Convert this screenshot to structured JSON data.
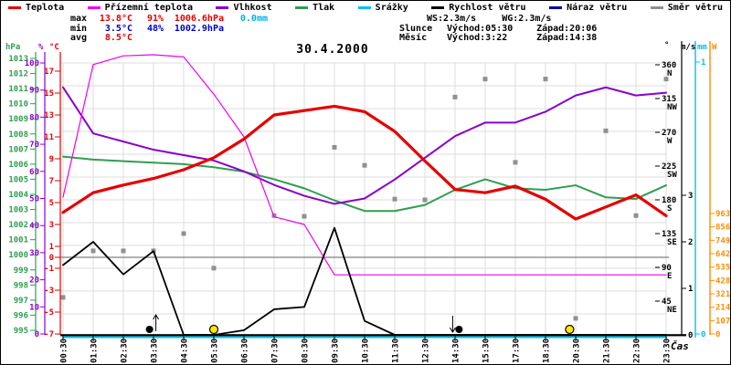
{
  "title": "30.4.2000",
  "legend": {
    "items": [
      {
        "label": "Teplota",
        "color": "#e60000"
      },
      {
        "label": "Přízemní teplota",
        "color": "#f000f0"
      },
      {
        "label": "Vlhkost",
        "color": "#8800cc"
      },
      {
        "label": "Tlak",
        "color": "#2f9e4f"
      },
      {
        "label": "Srážky",
        "color": "#00c0f0"
      },
      {
        "label": "Rychlost větru",
        "color": "#000000"
      },
      {
        "label": "Náraz větru",
        "color": "#0000a0"
      },
      {
        "label": "Směr větru",
        "color": "#909090"
      }
    ]
  },
  "stats_left": {
    "rows": [
      {
        "label": "max",
        "values": [
          {
            "text": "13.8°C",
            "color": "#e60000",
            "col": "c1"
          },
          {
            "text": "91%",
            "color": "#e60000",
            "col": "c2"
          },
          {
            "text": "1006.6hPa",
            "color": "#e60000",
            "col": "c3"
          },
          {
            "text": "0.0mm",
            "color": "#00b0e8",
            "col": "c4"
          }
        ]
      },
      {
        "label": "min",
        "values": [
          {
            "text": "3.5°C",
            "color": "#0000cc",
            "col": "c1"
          },
          {
            "text": "48%",
            "color": "#0000cc",
            "col": "c2"
          },
          {
            "text": "1002.9hPa",
            "color": "#0000cc",
            "col": "c3"
          }
        ]
      },
      {
        "label": "avg",
        "values": [
          {
            "text": "8.5°C",
            "color": "#e60000",
            "col": "c1"
          }
        ]
      }
    ]
  },
  "stats_right": {
    "ws": "WS:2.3m/s",
    "wg": "WG:2.3m/s",
    "sun_label": "Slunce",
    "sun_rise": "Východ:05:30",
    "sun_set": "Západ:20:06",
    "moon_label": "Měsíc",
    "moon_rise": "Východ:3:22",
    "moon_set": "Západ:14:38"
  },
  "chart_data": {
    "type": "line",
    "title": "30.4.2000",
    "xlabel": "Čas",
    "x_labels": [
      "00:30",
      "01:30",
      "02:30",
      "03:30",
      "04:30",
      "05:30",
      "06:30",
      "07:30",
      "08:30",
      "09:30",
      "10:30",
      "11:30",
      "12:30",
      "14:30",
      "15:30",
      "17:30",
      "18:30",
      "20:30",
      "21:30",
      "22:30",
      "23:30"
    ],
    "axes": {
      "hpa": {
        "label": "hPa",
        "color": "#2f9e4f",
        "min": 995,
        "max": 1013,
        "ticks": [
          995,
          996,
          997,
          998,
          999,
          1000,
          1001,
          1002,
          1003,
          1004,
          1005,
          1006,
          1007,
          1008,
          1009,
          1010,
          1011,
          1012,
          1013
        ]
      },
      "pct": {
        "label": "%",
        "color": "#8800cc",
        "min": 0,
        "max": 100,
        "ticks": [
          0,
          10,
          20,
          30,
          40,
          50,
          60,
          70,
          80,
          90,
          100
        ]
      },
      "degc": {
        "label": "°C",
        "color": "#e60000",
        "min": -7,
        "max": 17,
        "ticks": [
          -7,
          -5,
          -3,
          -1,
          0,
          1,
          3,
          5,
          7,
          9,
          11,
          13,
          15,
          17
        ]
      },
      "deg": {
        "label": "°",
        "color": "#000000",
        "min": 0,
        "max": 360,
        "ticks": [
          {
            "v": 45,
            "d": "NE"
          },
          {
            "v": 90,
            "d": "E"
          },
          {
            "v": 135,
            "d": "SE"
          },
          {
            "v": 180,
            "d": "S"
          },
          {
            "v": 225,
            "d": "SW"
          },
          {
            "v": 270,
            "d": "W"
          },
          {
            "v": 315,
            "d": "NW"
          },
          {
            "v": 360,
            "d": "N"
          }
        ]
      },
      "ms": {
        "label": "m/s",
        "color": "#000000",
        "min": 0,
        "max": 3,
        "ticks": [
          0,
          1,
          2,
          3
        ]
      },
      "mm": {
        "label": "mm",
        "color": "#00c0f0",
        "min": 0,
        "max": 1,
        "ticks": [
          0,
          1
        ]
      },
      "w": {
        "label": "W",
        "color": "#ff8c00",
        "min": 0,
        "max": 963,
        "ticks": [
          0,
          107,
          214,
          321,
          428,
          535,
          642,
          749,
          856,
          963
        ]
      }
    },
    "series": [
      {
        "name": "Teplota",
        "axis": "degc",
        "color": "#e60000",
        "width": 3.2,
        "values": [
          4.1,
          5.9,
          6.6,
          7.2,
          8.0,
          9.1,
          10.8,
          13.0,
          13.4,
          13.8,
          13.3,
          11.5,
          8.8,
          6.2,
          5.9,
          6.5,
          5.3,
          3.5,
          4.6,
          5.7,
          3.8
        ]
      },
      {
        "name": "Přízemní teplota",
        "axis": "degc",
        "color": "#f000f0",
        "width": 1.2,
        "values": [
          5.5,
          17.6,
          18.4,
          18.5,
          18.3,
          14.9,
          11.0,
          3.7,
          3.0,
          -1.6,
          -1.6,
          -1.6,
          -1.6,
          -1.6,
          -1.6,
          -1.6,
          -1.6,
          -1.6,
          -1.6,
          -1.6,
          -1.6
        ]
      },
      {
        "name": "Vlhkost",
        "axis": "pct",
        "color": "#8800cc",
        "width": 2,
        "values": [
          91,
          74,
          71,
          68,
          66,
          64,
          60,
          55,
          51,
          48,
          50,
          57,
          65,
          73,
          78,
          78,
          82,
          88,
          91,
          88,
          89
        ]
      },
      {
        "name": "Tlak",
        "axis": "hpa",
        "color": "#2f9e4f",
        "width": 2,
        "values": [
          1006.5,
          1006.3,
          1006.2,
          1006.1,
          1006.0,
          1005.8,
          1005.5,
          1005.0,
          1004.4,
          1003.6,
          1002.9,
          1002.9,
          1003.3,
          1004.3,
          1005.0,
          1004.4,
          1004.3,
          1004.6,
          1003.8,
          1003.7,
          1004.6
        ]
      },
      {
        "name": "Srážky",
        "axis": "mm",
        "color": "#00c0f0",
        "width": 2,
        "values": [
          0,
          0,
          0,
          0,
          0,
          0,
          0,
          0,
          0,
          0,
          0,
          0,
          0,
          0,
          0,
          0,
          0,
          0,
          0,
          0,
          0
        ]
      },
      {
        "name": "Rychlost větru",
        "axis": "ms",
        "color": "#000000",
        "width": 1.8,
        "values": [
          1.5,
          2.0,
          1.3,
          1.8,
          0,
          0,
          0.1,
          0.55,
          0.6,
          2.3,
          0.3,
          0,
          0,
          0,
          0,
          0,
          0,
          0,
          0,
          0,
          0
        ]
      },
      {
        "name": "Náraz větru",
        "axis": "ms",
        "color": "#0000a0",
        "width": 1,
        "values": [
          1.5,
          2.0,
          1.3,
          1.8,
          0,
          0,
          0.1,
          0.55,
          0.6,
          2.3,
          0.3,
          0,
          0,
          0,
          0,
          0,
          0,
          0,
          0,
          0,
          0
        ]
      },
      {
        "name": "Směr větru",
        "axis": "deg",
        "color": "#909090",
        "type": "scatter",
        "points": [
          [
            0,
            50
          ],
          [
            1,
            112
          ],
          [
            2,
            112
          ],
          [
            3,
            112
          ],
          [
            4,
            135
          ],
          [
            5,
            89
          ],
          [
            7,
            159
          ],
          [
            8,
            158
          ],
          [
            9,
            250
          ],
          [
            10,
            226
          ],
          [
            11,
            181
          ],
          [
            12,
            180
          ],
          [
            13,
            317
          ],
          [
            14,
            341
          ],
          [
            15,
            230
          ],
          [
            16,
            341
          ],
          [
            17,
            22
          ],
          [
            18,
            272
          ],
          [
            19,
            159
          ],
          [
            20,
            341
          ]
        ]
      }
    ],
    "events": [
      {
        "body": "moon",
        "event": "rise",
        "time": "3:22"
      },
      {
        "body": "sun",
        "event": "rise",
        "time": "05:30"
      },
      {
        "body": "moon",
        "event": "set",
        "time": "14:38"
      },
      {
        "body": "sun",
        "event": "set",
        "time": "20:06"
      }
    ],
    "zero_line_degc": 0
  }
}
